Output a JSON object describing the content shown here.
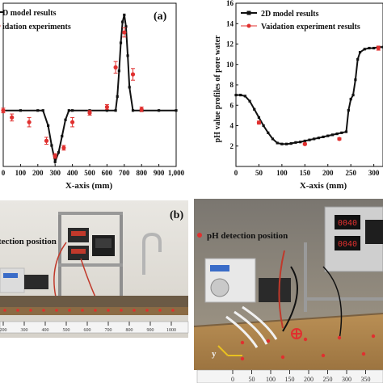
{
  "panel_a_label": "(a)",
  "panel_b_label": "(b)",
  "chart_data": [
    {
      "type": "line",
      "panel": "(a) top-left",
      "xlabel": "X-axis (mm)",
      "ylabel": "",
      "xlim": [
        0,
        1000
      ],
      "ylim": [
        2,
        16
      ],
      "xticks": [
        0,
        100,
        200,
        300,
        400,
        500,
        600,
        700,
        800,
        900,
        1000
      ],
      "xtick_labels": [
        "0",
        "100",
        "200",
        "300",
        "400",
        "500",
        "600",
        "700",
        "800",
        "900",
        "1,000"
      ],
      "legend": [
        "D model results",
        "idation experiments"
      ],
      "legend_position": "top-left",
      "grid": false,
      "series": [
        {
          "name": "D model results",
          "color": "#111111",
          "marker": "square",
          "x": [
            0,
            100,
            200,
            230,
            260,
            280,
            300,
            320,
            340,
            360,
            380,
            400,
            500,
            600,
            650,
            660,
            670,
            680,
            690,
            700,
            710,
            720,
            730,
            750,
            800,
            900,
            1000
          ],
          "y": [
            6.8,
            6.8,
            6.8,
            6.8,
            5.5,
            3.8,
            2.4,
            3.2,
            4.6,
            6.0,
            6.8,
            6.8,
            6.8,
            6.8,
            6.8,
            8.0,
            10.2,
            12.6,
            14.4,
            15.0,
            14.0,
            11.5,
            8.8,
            6.8,
            6.8,
            6.8,
            6.8
          ]
        },
        {
          "name": "idation experiments",
          "color": "#e0302f",
          "marker": "dot",
          "x": [
            0,
            50,
            150,
            250,
            300,
            350,
            400,
            500,
            600,
            650,
            700,
            750,
            800
          ],
          "y": [
            6.8,
            6.2,
            5.8,
            4.2,
            2.9,
            3.6,
            5.8,
            6.6,
            7.1,
            10.5,
            13.5,
            9.9,
            6.9
          ],
          "err": [
            0.2,
            0.3,
            0.4,
            0.3,
            0.2,
            0.2,
            0.4,
            0.2,
            0.2,
            0.5,
            0.4,
            0.5,
            0.2
          ]
        }
      ]
    },
    {
      "type": "line",
      "panel": "top-right",
      "xlabel": "X-axis (mm)",
      "ylabel": "pH value profiles of pore water",
      "xlim": [
        0,
        320
      ],
      "ylim": [
        0,
        16
      ],
      "xticks": [
        0,
        50,
        100,
        150,
        200,
        250,
        300
      ],
      "yticks": [
        2,
        4,
        6,
        8,
        10,
        12,
        14,
        16
      ],
      "legend": [
        "2D model results",
        "Vaidation experiment results"
      ],
      "legend_position": "top-right",
      "grid": false,
      "series": [
        {
          "name": "2D model results",
          "color": "#111111",
          "marker": "square",
          "x": [
            0,
            10,
            20,
            30,
            40,
            50,
            60,
            70,
            80,
            90,
            100,
            110,
            120,
            130,
            140,
            150,
            160,
            170,
            180,
            190,
            200,
            210,
            220,
            230,
            240,
            245,
            250,
            255,
            260,
            265,
            270,
            280,
            290,
            300,
            310,
            320
          ],
          "y": [
            7.0,
            7.0,
            6.9,
            6.4,
            5.6,
            4.8,
            4.0,
            3.3,
            2.7,
            2.3,
            2.2,
            2.2,
            2.25,
            2.35,
            2.4,
            2.5,
            2.6,
            2.7,
            2.8,
            2.9,
            3.0,
            3.1,
            3.2,
            3.3,
            3.4,
            5.5,
            6.6,
            7.0,
            8.5,
            10.5,
            11.2,
            11.5,
            11.6,
            11.6,
            11.7,
            11.7
          ]
        },
        {
          "name": "Vaidation experiment results",
          "color": "#e0302f",
          "marker": "dot",
          "x": [
            50,
            150,
            225,
            310
          ],
          "y": [
            4.3,
            2.2,
            2.7,
            11.6
          ],
          "err": [
            0.15,
            0.1,
            0.1,
            0.2
          ]
        }
      ]
    }
  ],
  "photo_left": {
    "label": "(b)",
    "legend_text": "tection position",
    "ruler_ticks": [
      "200",
      "300",
      "400",
      "500",
      "600",
      "700",
      "800",
      "900",
      "1000"
    ]
  },
  "photo_right": {
    "legend_text": "pH detection position",
    "display_1": "0040",
    "display_2": "0040",
    "axis_y": "y",
    "ruler_ticks": [
      "0",
      "50",
      "100",
      "150",
      "200",
      "250",
      "300",
      "350"
    ]
  }
}
